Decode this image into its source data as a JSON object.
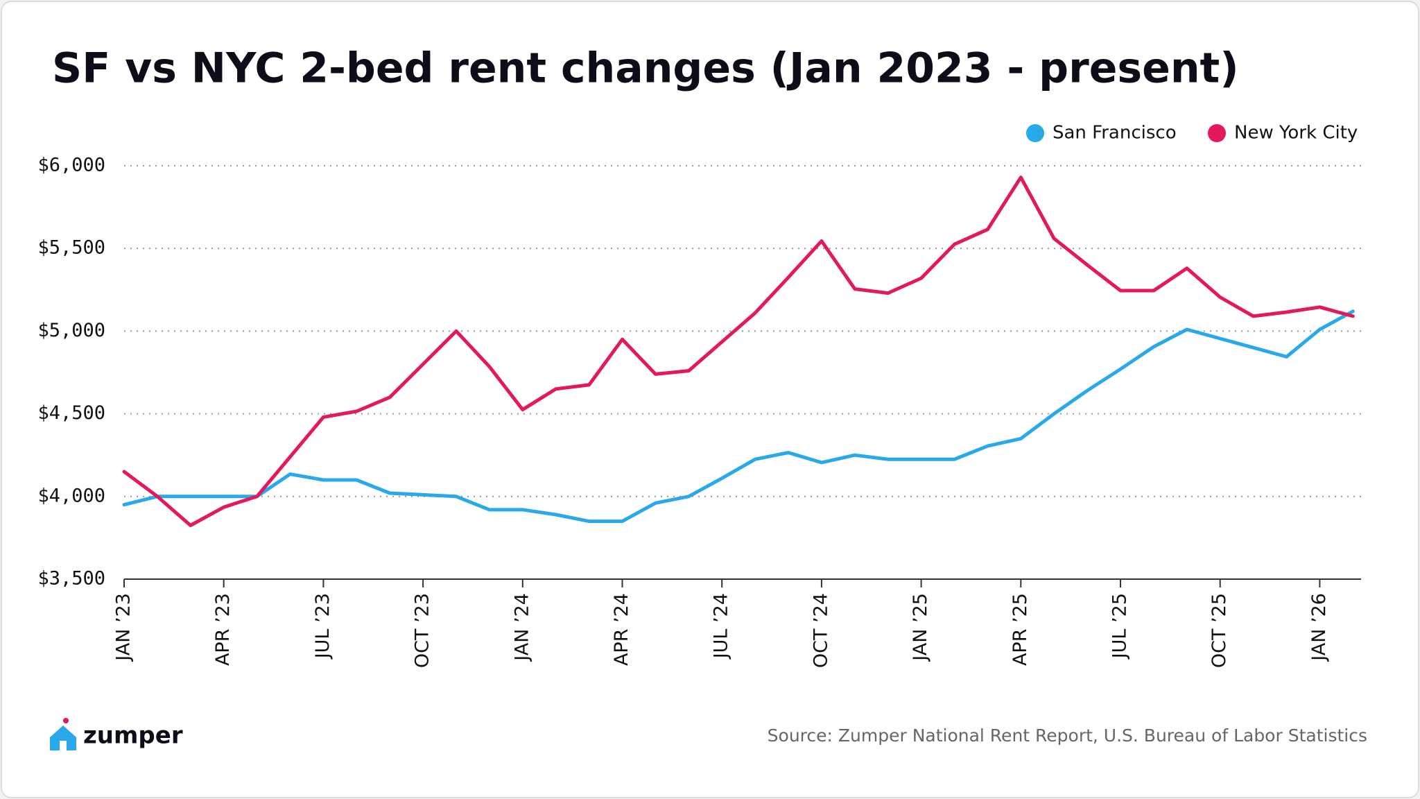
{
  "chart_data": {
    "type": "line",
    "title": "SF vs NYC 2-bed rent changes (Jan 2023 - present)",
    "categories": [
      "JAN ’23",
      null,
      null,
      "APR ’23",
      null,
      null,
      "JUL ’23",
      null,
      null,
      "OCT ’23",
      null,
      null,
      "JAN ’24",
      null,
      null,
      "APR ’24",
      null,
      null,
      "JUL ’24",
      null,
      null,
      "OCT ’24",
      null,
      null,
      "JAN ’25",
      null,
      null,
      "APR ’25",
      null,
      null,
      "JUL ’25",
      null,
      null,
      "OCT ’25",
      null,
      null,
      "JAN ’26",
      null
    ],
    "series": [
      {
        "name": "San Francisco",
        "color": "#29a9ea",
        "values": [
          3950,
          4000,
          4000,
          4000,
          4000,
          4135,
          4100,
          4100,
          4020,
          4010,
          4000,
          3920,
          3920,
          3890,
          3850,
          3850,
          3960,
          4000,
          4110,
          4225,
          4265,
          4205,
          4250,
          4225,
          4225,
          4225,
          4305,
          4350,
          4500,
          4640,
          4770,
          4905,
          5010,
          4955,
          4900,
          4845,
          5010,
          5120
        ]
      },
      {
        "name": "New York City",
        "color": "#e2195b",
        "values": [
          4150,
          4000,
          3825,
          3935,
          4000,
          4240,
          4480,
          4515,
          4600,
          4800,
          5000,
          4785,
          4525,
          4650,
          4675,
          4950,
          4740,
          4760,
          4935,
          5110,
          5325,
          5545,
          5255,
          5230,
          5320,
          5525,
          5615,
          5930,
          5560,
          5400,
          5245,
          5245,
          5380,
          5205,
          5090,
          5115,
          5145,
          5090
        ]
      }
    ],
    "ylim": [
      3500,
      6000
    ],
    "yticks": [
      {
        "value": 3500,
        "label": "$3,500"
      },
      {
        "value": 4000,
        "label": "$4,000"
      },
      {
        "value": 4500,
        "label": "$4,500"
      },
      {
        "value": 5000,
        "label": "$5,000"
      },
      {
        "value": 5500,
        "label": "$5,500"
      },
      {
        "value": 6000,
        "label": "$6,000"
      }
    ],
    "grid": true,
    "legend": "top-right",
    "source": "Source: Zumper National Rent Report, U.S. Bureau of Labor Statistics",
    "logo": "zumper"
  }
}
